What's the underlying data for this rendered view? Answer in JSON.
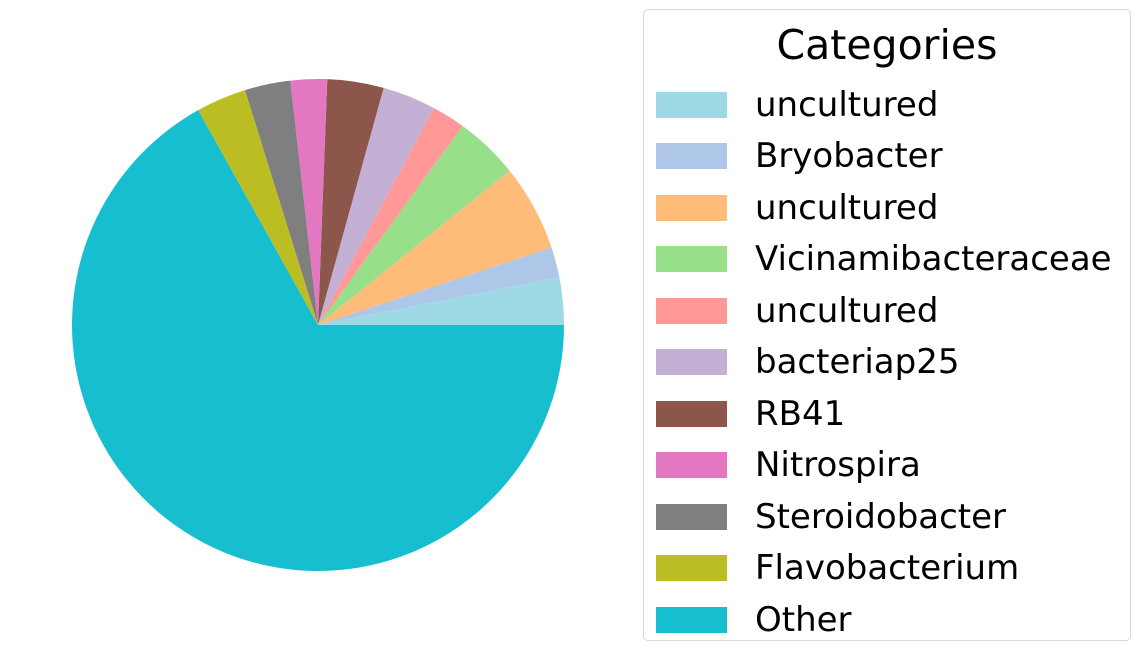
{
  "chart_data": {
    "type": "pie",
    "start_angle_deg": 0,
    "direction": "counterclockwise",
    "legend_title": "Categories",
    "legend_position": "right",
    "slices": [
      {
        "label": "uncultured",
        "value": 3.1,
        "color": "#9edae5"
      },
      {
        "label": "Bryobacter",
        "value": 2.0,
        "color": "#aec7e8"
      },
      {
        "label": "uncultured",
        "value": 5.7,
        "color": "#ffbb78"
      },
      {
        "label": "Vicinamibacteraceae",
        "value": 4.2,
        "color": "#98df8a"
      },
      {
        "label": "uncultured",
        "value": 2.2,
        "color": "#ff9896"
      },
      {
        "label": "bacteriap25",
        "value": 3.5,
        "color": "#c5b0d5"
      },
      {
        "label": "RB41",
        "value": 3.7,
        "color": "#8c564b"
      },
      {
        "label": "Nitrospira",
        "value": 2.4,
        "color": "#e377c2"
      },
      {
        "label": "Steroidobacter",
        "value": 3.0,
        "color": "#7f7f7f"
      },
      {
        "label": "Flavobacterium",
        "value": 3.3,
        "color": "#bcbd22"
      },
      {
        "label": "Other",
        "value": 66.9,
        "color": "#17becf"
      }
    ]
  }
}
